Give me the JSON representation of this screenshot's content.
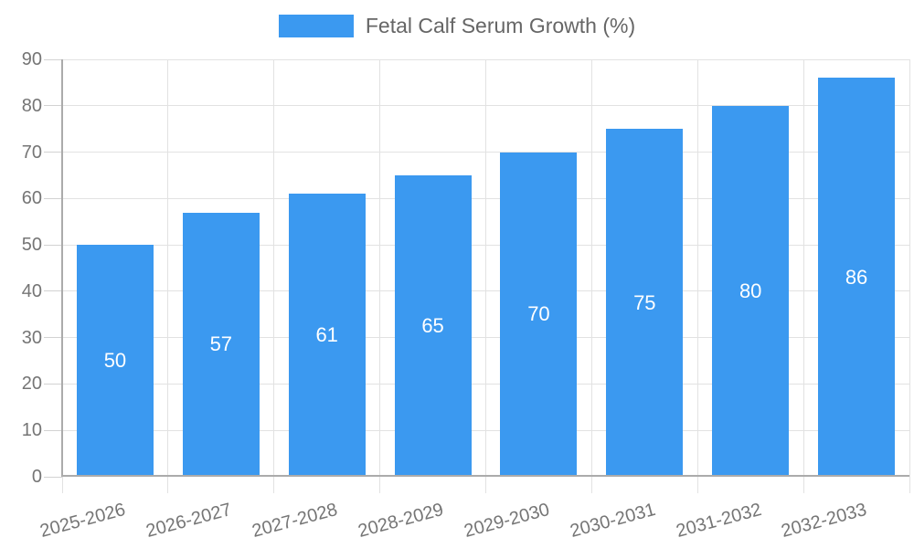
{
  "chart_data": {
    "type": "bar",
    "title": "",
    "categories": [
      "2025-2026",
      "2026-2027",
      "2027-2028",
      "2028-2029",
      "2029-2030",
      "2030-2031",
      "2031-2032",
      "2032-2033"
    ],
    "series": [
      {
        "name": "Fetal Calf Serum Growth (%)",
        "values": [
          50,
          57,
          61,
          65,
          70,
          75,
          80,
          86
        ]
      }
    ],
    "xlabel": "",
    "ylabel": "",
    "ylim": [
      0,
      90
    ],
    "yticks": [
      0,
      10,
      20,
      30,
      40,
      50,
      60,
      70,
      80,
      90
    ],
    "legend_position": "top-center",
    "grid": true,
    "value_labels": "inside-center",
    "x_label_rotation_deg": -15,
    "colors": {
      "bar": "#3b99f0",
      "axis_text": "#757575",
      "legend_text": "#666666",
      "grid_line": "#e2e2e2",
      "tick_line": "#d2d2d2",
      "axis_line": "#ababab",
      "value_label_text": "#ffffff",
      "background": "#ffffff"
    }
  }
}
